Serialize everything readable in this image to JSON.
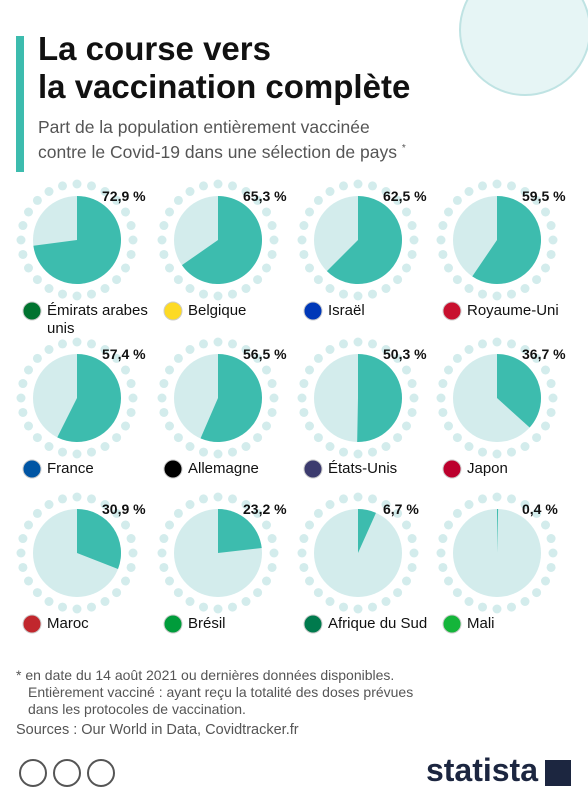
{
  "title": [
    "La course vers",
    "la vaccination complète"
  ],
  "subtitle": [
    "Part de la population entièrement vaccinée",
    "contre le Covid-19 dans une sélection de pays"
  ],
  "subtitle_mark": "*",
  "chart_data": [
    {
      "type": "pie",
      "title": "Émirats arabes unis",
      "values": [
        72.9
      ],
      "value_labels": [
        "72,9 %"
      ],
      "color": "#3dbcae"
    },
    {
      "type": "pie",
      "title": "Belgique",
      "values": [
        65.3
      ],
      "value_labels": [
        "65,3 %"
      ],
      "color": "#3dbcae"
    },
    {
      "type": "pie",
      "title": "Israël",
      "values": [
        62.5
      ],
      "value_labels": [
        "62,5 %"
      ],
      "color": "#3dbcae"
    },
    {
      "type": "pie",
      "title": "Royaume-Uni",
      "values": [
        59.5
      ],
      "value_labels": [
        "59,5 %"
      ],
      "color": "#3dbcae"
    },
    {
      "type": "pie",
      "title": "France",
      "values": [
        57.4
      ],
      "value_labels": [
        "57,4 %"
      ],
      "color": "#3dbcae"
    },
    {
      "type": "pie",
      "title": "Allemagne",
      "values": [
        56.5
      ],
      "value_labels": [
        "56,5 %"
      ],
      "color": "#3dbcae"
    },
    {
      "type": "pie",
      "title": "États-Unis",
      "values": [
        50.3
      ],
      "value_labels": [
        "50,3 %"
      ],
      "color": "#3dbcae"
    },
    {
      "type": "pie",
      "title": "Japon",
      "values": [
        36.7
      ],
      "value_labels": [
        "36,7 %"
      ],
      "color": "#3dbcae"
    },
    {
      "type": "pie",
      "title": "Maroc",
      "values": [
        30.9
      ],
      "value_labels": [
        "30,9 %"
      ],
      "color": "#3dbcae"
    },
    {
      "type": "pie",
      "title": "Brésil",
      "values": [
        23.2
      ],
      "value_labels": [
        "23,2 %"
      ],
      "color": "#3dbcae"
    },
    {
      "type": "pie",
      "title": "Afrique du Sud",
      "values": [
        6.7
      ],
      "value_labels": [
        "6,7 %"
      ],
      "color": "#3dbcae"
    },
    {
      "type": "pie",
      "title": "Mali",
      "values": [
        0.4
      ],
      "value_labels": [
        "0,4 %"
      ],
      "color": "#3dbcae"
    }
  ],
  "footnote": [
    "* en date du 14 août 2021 ou dernières données disponibles.",
    "Entièrement vacciné : ayant reçu la totalité des doses prévues",
    "dans les protocoles de vaccination."
  ],
  "sources": "Sources : Our World in Data, Covidtracker.fr",
  "brand": "statista"
}
